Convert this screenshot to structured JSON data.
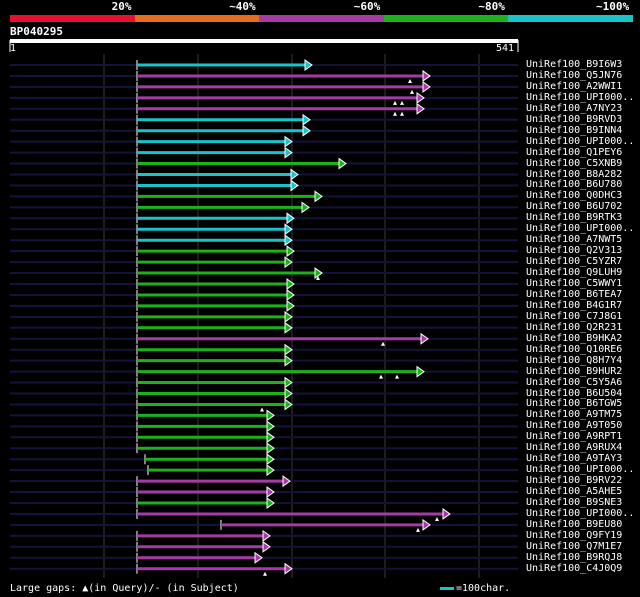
{
  "identity_legend": [
    {
      "label": "20%",
      "color": "#e8112d"
    },
    {
      "label": "~40%",
      "color": "#e86c1d"
    },
    {
      "label": "~60%",
      "color": "#a63ba6"
    },
    {
      "label": "~80%",
      "color": "#1bb21b"
    },
    {
      "label": "~100%",
      "color": "#19c3c8"
    }
  ],
  "query": {
    "name": "BP040295",
    "start": "1",
    "end": "541"
  },
  "hits": [
    {
      "name": "UniRef100_B9I6W3",
      "color": "#19c3c8",
      "end": 312
    },
    {
      "name": "UniRef100_Q5JN76",
      "color": "#a63ba6",
      "end": 430,
      "marks": [
        410
      ]
    },
    {
      "name": "UniRef100_A2WWI1",
      "color": "#a63ba6",
      "end": 430,
      "marks": [
        412
      ]
    },
    {
      "name": "UniRef100_UPI000..",
      "color": "#a63ba6",
      "end": 424,
      "marks": [
        395,
        402
      ]
    },
    {
      "name": "UniRef100_A7NY23",
      "color": "#a63ba6",
      "end": 424,
      "marks": [
        395,
        402
      ]
    },
    {
      "name": "UniRef100_B9RVD3",
      "color": "#19c3c8",
      "end": 310
    },
    {
      "name": "UniRef100_B9INN4",
      "color": "#19c3c8",
      "end": 310
    },
    {
      "name": "UniRef100_UPI000..",
      "color": "#19c3c8",
      "end": 292
    },
    {
      "name": "UniRef100_Q1PEY6",
      "color": "#19c3c8",
      "end": 292
    },
    {
      "name": "UniRef100_C5XNB9",
      "color": "#1bb21b",
      "end": 346
    },
    {
      "name": "UniRef100_B8A282",
      "color": "#19c3c8",
      "end": 298
    },
    {
      "name": "UniRef100_B6U780",
      "color": "#19c3c8",
      "end": 298
    },
    {
      "name": "UniRef100_Q0DHC3",
      "color": "#1bb21b",
      "end": 322
    },
    {
      "name": "UniRef100_B6U702",
      "color": "#1bb21b",
      "end": 309
    },
    {
      "name": "UniRef100_B9RTK3",
      "color": "#19c3c8",
      "end": 294
    },
    {
      "name": "UniRef100_UPI000..",
      "color": "#19c3c8",
      "end": 292
    },
    {
      "name": "UniRef100_A7NWT5",
      "color": "#19c3c8",
      "end": 292
    },
    {
      "name": "UniRef100_Q2V313",
      "color": "#1bb21b",
      "end": 294
    },
    {
      "name": "UniRef100_C5YZR7",
      "color": "#1bb21b",
      "end": 292
    },
    {
      "name": "UniRef100_Q9LUH9",
      "color": "#1bb21b",
      "end": 322,
      "marks": [
        318
      ]
    },
    {
      "name": "UniRef100_C5WWY1",
      "color": "#1bb21b",
      "end": 294
    },
    {
      "name": "UniRef100_B6TEA7",
      "color": "#1bb21b",
      "end": 294
    },
    {
      "name": "UniRef100_B4G1R7",
      "color": "#1bb21b",
      "end": 294
    },
    {
      "name": "UniRef100_C7J8G1",
      "color": "#1bb21b",
      "end": 292
    },
    {
      "name": "UniRef100_Q2R231",
      "color": "#1bb21b",
      "end": 292
    },
    {
      "name": "UniRef100_B9HKA2",
      "color": "#a63ba6",
      "end": 428,
      "marks": [
        383
      ]
    },
    {
      "name": "UniRef100_Q10RE6",
      "color": "#1bb21b",
      "end": 292
    },
    {
      "name": "UniRef100_Q8H7Y4",
      "color": "#1bb21b",
      "end": 292
    },
    {
      "name": "UniRef100_B9HUR2",
      "color": "#1bb21b",
      "end": 424,
      "marks": [
        381,
        397
      ]
    },
    {
      "name": "UniRef100_C5Y5A6",
      "color": "#1bb21b",
      "end": 292
    },
    {
      "name": "UniRef100_B6U504",
      "color": "#1bb21b",
      "end": 292
    },
    {
      "name": "UniRef100_B6TGW5",
      "color": "#1bb21b",
      "end": 292,
      "marks": [
        262
      ]
    },
    {
      "name": "UniRef100_A9TM75",
      "color": "#1bb21b",
      "end": 274
    },
    {
      "name": "UniRef100_A9T050",
      "color": "#1bb21b",
      "end": 274
    },
    {
      "name": "UniRef100_A9RPT1",
      "color": "#1bb21b",
      "end": 274
    },
    {
      "name": "UniRef100_A9RUX4",
      "color": "#1bb21b",
      "end": 274
    },
    {
      "name": "UniRef100_A9TAY3",
      "color": "#1bb21b",
      "start": 145,
      "end": 274
    },
    {
      "name": "UniRef100_UPI000..",
      "color": "#1bb21b",
      "start": 148,
      "end": 274
    },
    {
      "name": "UniRef100_B9RV22",
      "color": "#a63ba6",
      "end": 290
    },
    {
      "name": "UniRef100_A5AHE5",
      "color": "#a63ba6",
      "end": 274
    },
    {
      "name": "UniRef100_B9SNE3",
      "color": "#1bb21b",
      "end": 274
    },
    {
      "name": "UniRef100_UPI000..",
      "color": "#a63ba6",
      "end": 450,
      "marks": [
        437
      ]
    },
    {
      "name": "UniRef100_B9EU80",
      "color": "#a63ba6",
      "start": 221,
      "end": 430,
      "marks": [
        418
      ]
    },
    {
      "name": "UniRef100_Q9FY19",
      "color": "#a63ba6",
      "end": 270
    },
    {
      "name": "UniRef100_Q7M1E7",
      "color": "#a63ba6",
      "end": 270
    },
    {
      "name": "UniRef100_B9RQJ8",
      "color": "#a63ba6",
      "end": 262
    },
    {
      "name": "UniRef100_C4J0Q9",
      "color": "#a63ba6",
      "end": 292,
      "marks": [
        265
      ]
    }
  ],
  "footer": {
    "gaps_text": "Large gaps: ▲(in Query)/- (in Subject)",
    "key_text": "=100char."
  }
}
